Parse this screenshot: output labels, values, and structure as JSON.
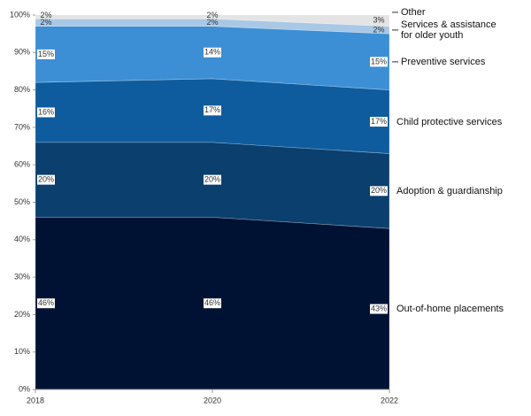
{
  "chart_data": {
    "type": "stacked-area",
    "x": [
      2018,
      2020,
      2022
    ],
    "xlim": [
      2018,
      2022
    ],
    "xticks": [
      2018,
      2020,
      2022
    ],
    "ylim": [
      0,
      100
    ],
    "yticks": [
      {
        "value": 0,
        "label": "0%"
      },
      {
        "value": 10,
        "label": "10%"
      },
      {
        "value": 20,
        "label": "20%"
      },
      {
        "value": 30,
        "label": "30%"
      },
      {
        "value": 40,
        "label": "40%"
      },
      {
        "value": 50,
        "label": "50%"
      },
      {
        "value": 60,
        "label": "60%"
      },
      {
        "value": 70,
        "label": "70%"
      },
      {
        "value": 80,
        "label": "80%"
      },
      {
        "value": 90,
        "label": "90%"
      },
      {
        "value": 100,
        "label": "100%"
      }
    ],
    "series": [
      {
        "name": "Out-of-home placements",
        "color": "#001233",
        "values": [
          46,
          46,
          43
        ],
        "value_labels": [
          "46%",
          "46%",
          "43%"
        ]
      },
      {
        "name": "Adoption & guardianship",
        "color": "#0a3f6e",
        "values": [
          20,
          20,
          20
        ],
        "value_labels": [
          "20%",
          "20%",
          "20%"
        ]
      },
      {
        "name": "Child protective services",
        "color": "#0e5c9e",
        "values": [
          16,
          17,
          17
        ],
        "value_labels": [
          "16%",
          "17%",
          "17%"
        ]
      },
      {
        "name": "Preventive services",
        "color": "#3c8fd4",
        "values": [
          15,
          14,
          15
        ],
        "value_labels": [
          "15%",
          "14%",
          "15%"
        ]
      },
      {
        "name": "Services & assistance for older youth",
        "color": "#a8c8e6",
        "values": [
          2,
          2,
          2
        ],
        "value_labels": [
          "2%",
          "2%",
          "2%"
        ]
      },
      {
        "name": "Other",
        "color": "#e4e4e4",
        "values": [
          2,
          2,
          3
        ],
        "value_labels": [
          "2%",
          "2%",
          "3%"
        ]
      }
    ]
  }
}
